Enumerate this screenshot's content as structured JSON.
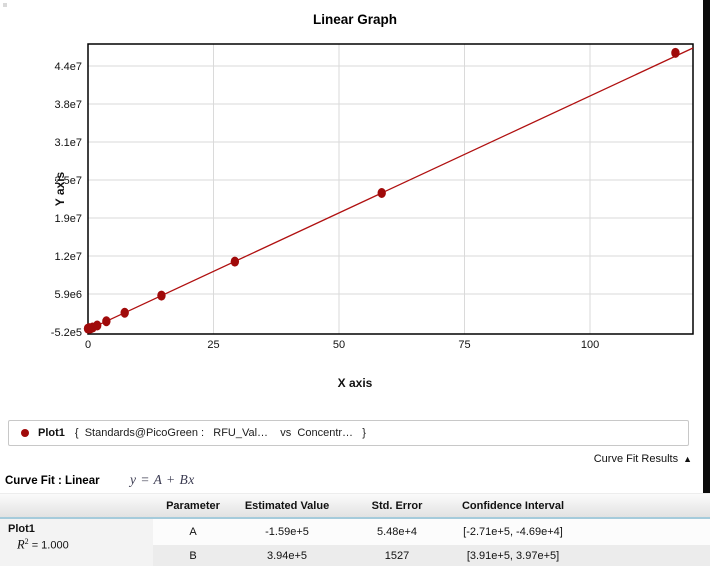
{
  "chart": {
    "title": "Linear Graph",
    "x_axis_label": "X axis",
    "y_axis_label": "Y axis"
  },
  "chart_data": {
    "type": "scatter",
    "title": "Linear Graph",
    "xlabel": "X axis",
    "ylabel": "Y axis",
    "xlim": [
      0,
      120.5
    ],
    "ylim": [
      -860000,
      47990000
    ],
    "grid": true,
    "x_ticks": [
      {
        "v": 0,
        "label": "0"
      },
      {
        "v": 25,
        "label": "25"
      },
      {
        "v": 50,
        "label": "50"
      },
      {
        "v": 75,
        "label": "75"
      },
      {
        "v": 100,
        "label": "100"
      }
    ],
    "y_ticks": [
      {
        "v": -520000,
        "label": "-5.2e5"
      },
      {
        "v": 5880000,
        "label": "5.9e6"
      },
      {
        "v": 12280000,
        "label": "1.2e7"
      },
      {
        "v": 18680000,
        "label": "1.9e7"
      },
      {
        "v": 25080000,
        "label": "2.5e7"
      },
      {
        "v": 31480000,
        "label": "3.1e7"
      },
      {
        "v": 37880000,
        "label": "3.8e7"
      },
      {
        "v": 44280000,
        "label": "4.4e7"
      }
    ],
    "series": [
      {
        "name": "Plot1",
        "color": "#a00a0a",
        "points": [
          {
            "x": 0,
            "y": 50000
          },
          {
            "x": 0.23,
            "y": 120000
          },
          {
            "x": 0.46,
            "y": 60000
          },
          {
            "x": 0.91,
            "y": 230000
          },
          {
            "x": 1.83,
            "y": 570000
          },
          {
            "x": 3.66,
            "y": 1290000
          },
          {
            "x": 7.31,
            "y": 2720000
          },
          {
            "x": 14.63,
            "y": 5610000
          },
          {
            "x": 29.25,
            "y": 11330000
          },
          {
            "x": 58.5,
            "y": 22890000
          },
          {
            "x": 117,
            "y": 46500000
          }
        ]
      }
    ],
    "fit": {
      "type": "linear",
      "A": -159000,
      "B": 394000,
      "color": "#b01010"
    }
  },
  "legend": {
    "plot_label": "Plot1",
    "series_text": "{  Standards@PicoGreen :   RFU_Val…    vs  Concentr…   }",
    "marker_color": "#a00a0a"
  },
  "results": {
    "toggle_label": "Curve Fit Results",
    "toggle_icon": "▲",
    "fit_label": "Curve Fit : Linear",
    "equation": "y = A + Bx"
  },
  "fit_table": {
    "headers": [
      "Parameter",
      "Estimated Value",
      "Std. Error",
      "Confidence Interval"
    ],
    "group_name": "Plot1",
    "r_symbol": "R",
    "r_sup": "2",
    "r_value": " = 1.000",
    "rows": [
      {
        "parameter": "A",
        "estimated": "-1.59e+5",
        "std_error": "5.48e+4",
        "ci": "[-2.71e+5, -4.69e+4]"
      },
      {
        "parameter": "B",
        "estimated": "3.94e+5",
        "std_error": "1527",
        "ci": "[3.91e+5, 3.97e+5]"
      }
    ]
  }
}
